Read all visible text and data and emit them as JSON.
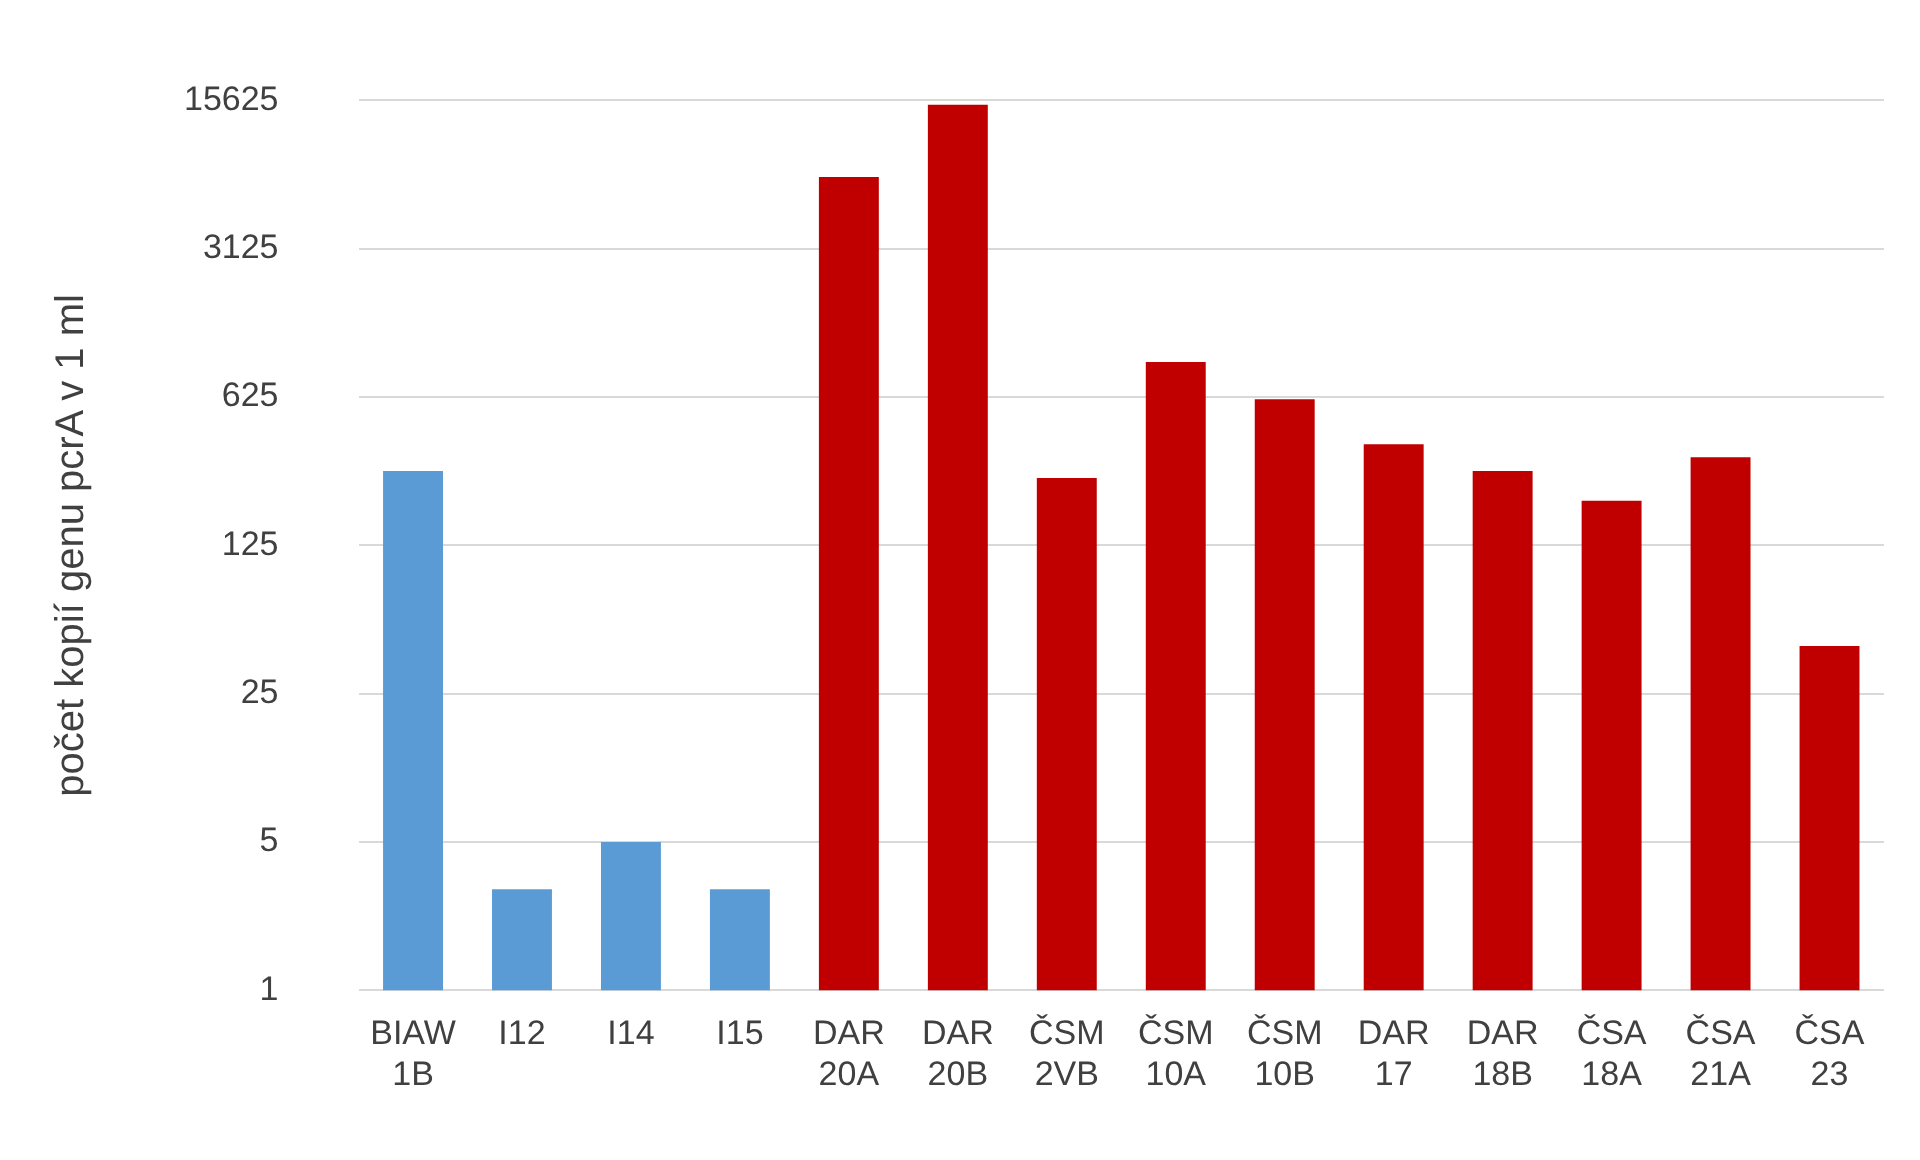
{
  "chart_data": {
    "type": "bar",
    "ylabel": "počet kopií genu pcrA v 1 ml",
    "categories": [
      "BIAW 1B",
      "I12",
      "I14",
      "I15",
      "DAR 20A",
      "DAR 20B",
      "ČSM 2VB",
      "ČSM 10A",
      "ČSM 10B",
      "DAR 17",
      "DAR 18B",
      "ČSA 18A",
      "ČSA 21A",
      "ČSA 23"
    ],
    "values": [
      280,
      3,
      5,
      3,
      6800,
      14900,
      260,
      915,
      610,
      375,
      280,
      203,
      325,
      42
    ],
    "colors": [
      "#5b9bd5",
      "#5b9bd5",
      "#5b9bd5",
      "#5b9bd5",
      "#c00000",
      "#c00000",
      "#c00000",
      "#c00000",
      "#c00000",
      "#c00000",
      "#c00000",
      "#c00000",
      "#c00000",
      "#c00000"
    ],
    "ylim": [
      1,
      15625
    ],
    "yticks": [
      1,
      5,
      25,
      125,
      625,
      3125,
      15625
    ],
    "log": true,
    "grid": "y",
    "legend": false
  }
}
